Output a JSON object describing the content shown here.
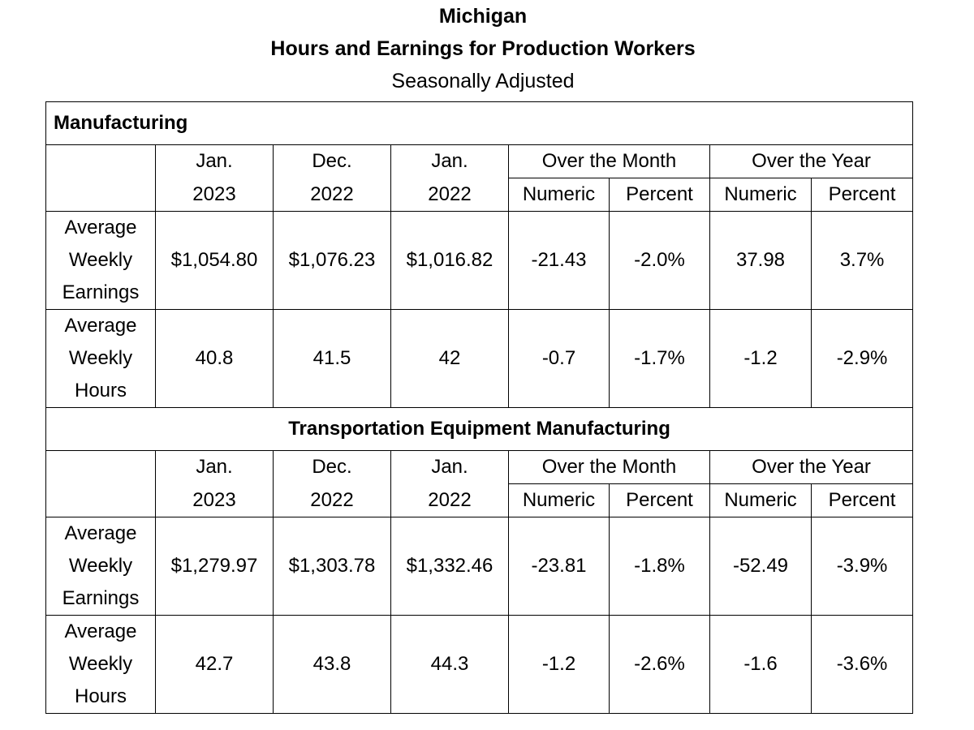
{
  "title": "Michigan",
  "subtitle": "Hours and Earnings for Production Workers",
  "note": "Seasonally Adjusted",
  "column_headers": {
    "c1": [
      "Jan.",
      "2023"
    ],
    "c2": [
      "Dec.",
      "2022"
    ],
    "c3": [
      "Jan.",
      "2022"
    ],
    "over_month": "Over the Month",
    "over_year": "Over the Year",
    "numeric": "Numeric",
    "percent": "Percent"
  },
  "sections": [
    {
      "name": "Manufacturing",
      "rows": [
        {
          "label": [
            "Average",
            "Weekly",
            "Earnings"
          ],
          "values": [
            "$1,054.80",
            "$1,076.23",
            "$1,016.82",
            "-21.43",
            "-2.0%",
            "37.98",
            "3.7%"
          ]
        },
        {
          "label": [
            "Average",
            "Weekly",
            "Hours"
          ],
          "values": [
            "40.8",
            "41.5",
            "42",
            "-0.7",
            "-1.7%",
            "-1.2",
            "-2.9%"
          ]
        }
      ]
    },
    {
      "name": "Transportation Equipment Manufacturing",
      "rows": [
        {
          "label": [
            "Average",
            "Weekly",
            "Earnings"
          ],
          "values": [
            "$1,279.97",
            "$1,303.78",
            "$1,332.46",
            "-23.81",
            "-1.8%",
            "-52.49",
            "-3.9%"
          ]
        },
        {
          "label": [
            "Average",
            "Weekly",
            "Hours"
          ],
          "values": [
            "42.7",
            "43.8",
            "44.3",
            "-1.2",
            "-2.6%",
            "-1.6",
            "-3.6%"
          ]
        }
      ]
    }
  ]
}
